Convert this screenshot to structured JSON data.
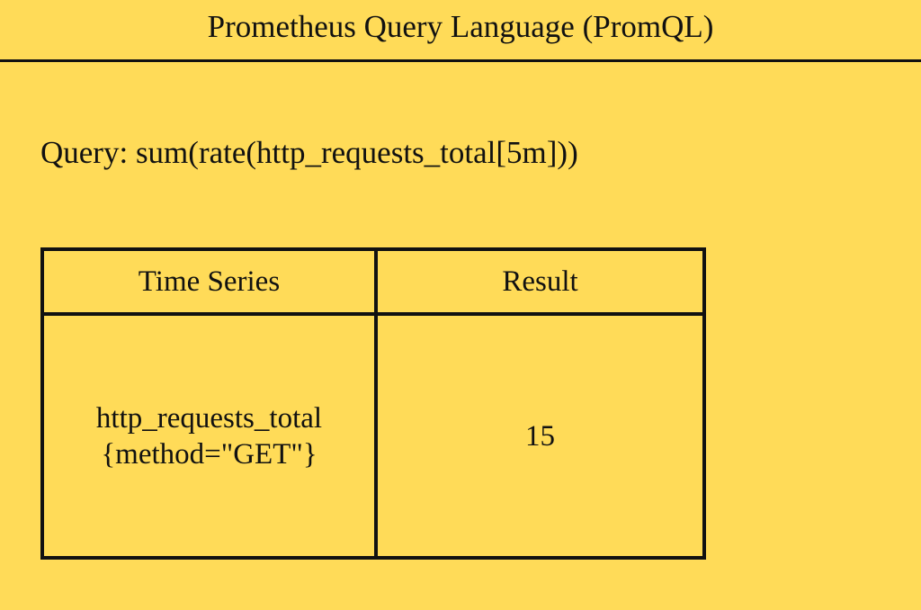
{
  "title": "Prometheus Query Language (PromQL)",
  "query": "Query: sum(rate(http_requests_total[5m]))",
  "table": {
    "headers": [
      "Time Series",
      "Result"
    ],
    "rows": [
      {
        "series_line1": "http_requests_total",
        "series_line2": "{method=\"GET\"}",
        "result": "15"
      }
    ]
  },
  "colors": {
    "background": "#FFDB58",
    "ink": "#111111"
  }
}
